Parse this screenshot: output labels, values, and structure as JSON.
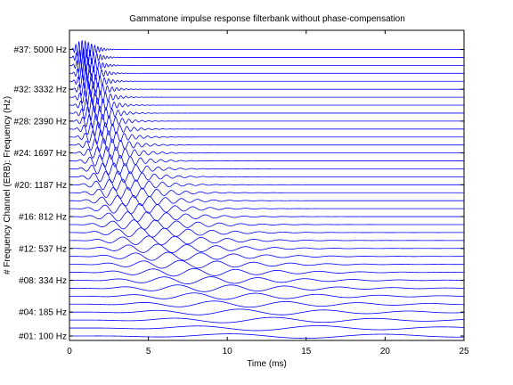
{
  "chart_data": {
    "type": "line",
    "title": "Gammatone impulse response filterbank without phase-compensation",
    "xlabel": "Time (ms)",
    "ylabel": "# Frequency Channel (ERB): Frequency (Hz)",
    "xlim": [
      0,
      25
    ],
    "x_ticks": [
      "0",
      "5",
      "10",
      "15",
      "20",
      "25"
    ],
    "grid": false,
    "line_color": "#0000ff",
    "channels": 37,
    "channel_frequencies_hz": [
      100,
      5000
    ],
    "y_ticks": [
      {
        "channel": 37,
        "label": "#37: 5000 Hz"
      },
      {
        "channel": 32,
        "label": "#32: 3332 Hz"
      },
      {
        "channel": 28,
        "label": "#28: 2390 Hz"
      },
      {
        "channel": 24,
        "label": "#24: 1697 Hz"
      },
      {
        "channel": 20,
        "label": "#20: 1187 Hz"
      },
      {
        "channel": 16,
        "label": "#16:  812 Hz"
      },
      {
        "channel": 12,
        "label": "#12:  537 Hz"
      },
      {
        "channel": 8,
        "label": "#08:  334 Hz"
      },
      {
        "channel": 4,
        "label": "#04:  185 Hz"
      },
      {
        "channel": 1,
        "label": "#01:  100 Hz"
      }
    ]
  }
}
